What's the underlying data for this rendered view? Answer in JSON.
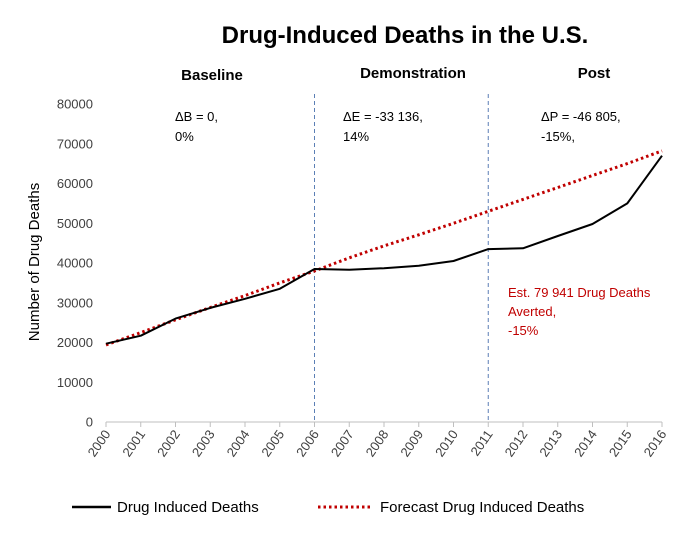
{
  "chart_data": {
    "type": "line",
    "title": "Drug-Induced Deaths in the U.S.",
    "xlabel": "",
    "ylabel": "Number of Drug Deaths",
    "ylim": [
      0,
      80000
    ],
    "yticks": [
      0,
      10000,
      20000,
      30000,
      40000,
      50000,
      60000,
      70000,
      80000
    ],
    "y_tick_labels": [
      "0",
      "10000",
      "20000",
      "30000",
      "40000",
      "50000",
      "60000",
      "70000",
      "80000"
    ],
    "categories": [
      "2000",
      "2001",
      "2002",
      "2003",
      "2004",
      "2005",
      "2006",
      "2007",
      "2008",
      "2009",
      "2010",
      "2011",
      "2012",
      "2013",
      "2014",
      "2015",
      "2016"
    ],
    "series": [
      {
        "name": "Drug Induced Deaths",
        "color": "#000000",
        "style": "solid",
        "values": [
          19700,
          21700,
          26000,
          28700,
          31000,
          33500,
          38500,
          38300,
          38700,
          39300,
          40500,
          43500,
          43700,
          46800,
          49800,
          55000,
          67000
        ]
      },
      {
        "name": "Forecast Drug Induced Deaths",
        "color": "#c00000",
        "style": "dotted",
        "values": [
          19400,
          22500,
          25700,
          28800,
          31800,
          35000,
          38000,
          41300,
          44300,
          47100,
          50000,
          53000,
          56000,
          59000,
          62000,
          65000,
          68200
        ]
      }
    ],
    "phases": [
      {
        "label": "Baseline",
        "start": "2000",
        "end": "2006"
      },
      {
        "label": "Demonstration",
        "start": "2006",
        "end": "2011"
      },
      {
        "label": "Post",
        "start": "2011",
        "end": "2016"
      }
    ],
    "dividers": [
      "2006",
      "2011"
    ],
    "annotations": {
      "baseline": [
        "ΔB = 0,",
        "0%"
      ],
      "demonstration": [
        "ΔE = -33 136,",
        "14%"
      ],
      "post": [
        "ΔP = -46 805,",
        "-15%,"
      ],
      "averted": [
        "Est. 79 941 Drug Deaths",
        "Averted,",
        "-15%"
      ]
    },
    "legend_position": "bottom",
    "grid": false
  }
}
